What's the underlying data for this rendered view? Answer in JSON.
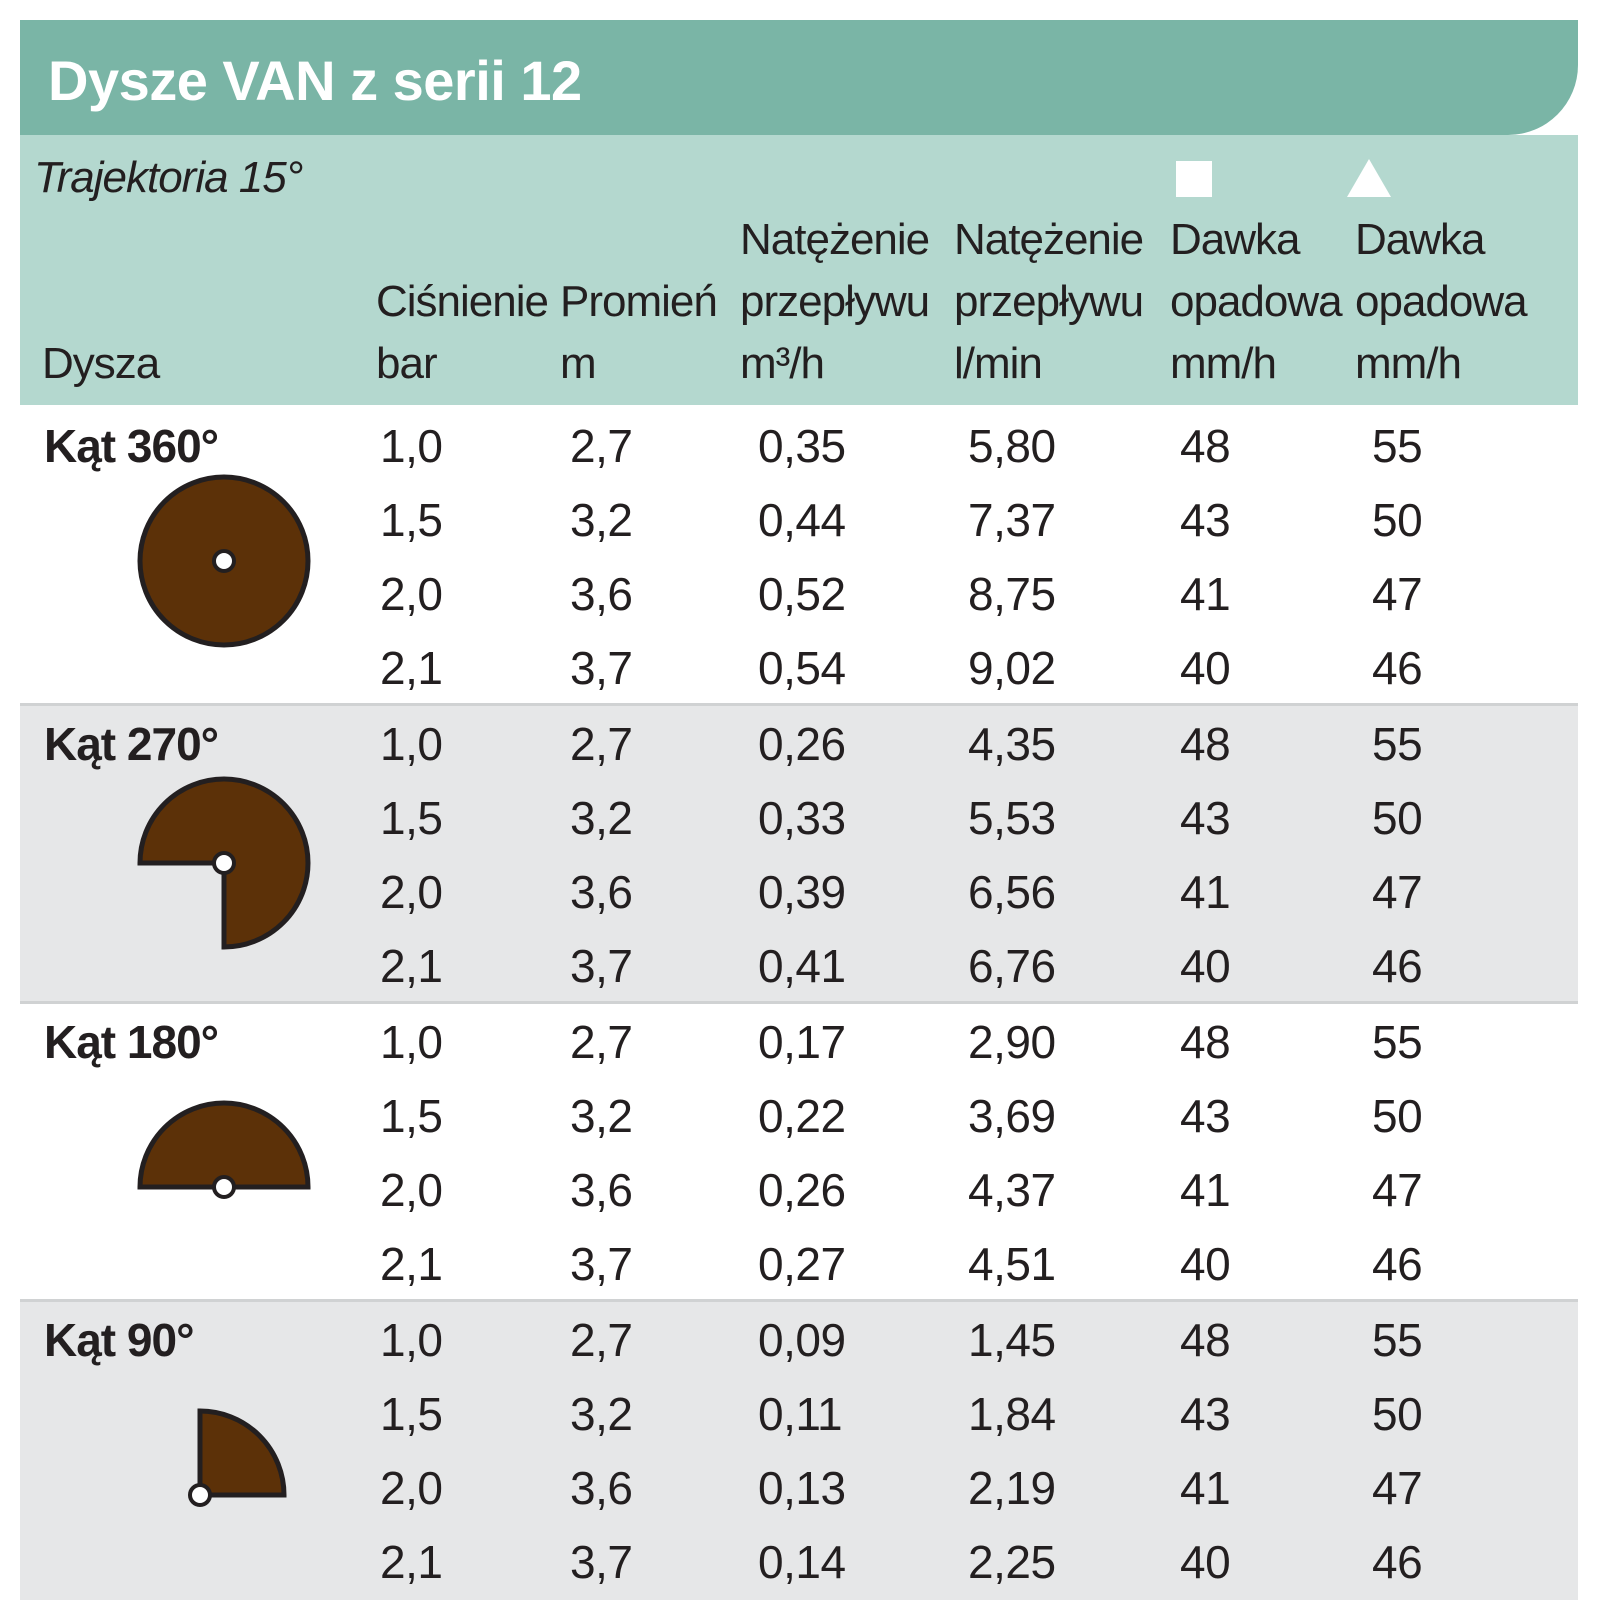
{
  "title": "Dysze VAN z serii 12",
  "trajectory": "Trajektoria 15°",
  "columns": [
    {
      "key": "dysza",
      "lines": [
        "Dysza"
      ]
    },
    {
      "key": "cisnienie",
      "lines": [
        "Ciśnienie",
        "bar"
      ]
    },
    {
      "key": "promien",
      "lines": [
        "Promień",
        "m"
      ]
    },
    {
      "key": "natezenie_m3h",
      "lines": [
        "Natężenie",
        "przepływu",
        "m³/h"
      ]
    },
    {
      "key": "natezenie_lmin",
      "lines": [
        "Natężenie",
        "przepływu",
        "l/min"
      ]
    },
    {
      "key": "dawka_square",
      "marker": "square",
      "lines": [
        "Dawka",
        "opadowa",
        "mm/h"
      ]
    },
    {
      "key": "dawka_triangle",
      "marker": "triangle",
      "lines": [
        "Dawka",
        "opadowa",
        "mm/h"
      ]
    }
  ],
  "icon_color": "#5c3108",
  "groups": [
    {
      "label": "Kąt 360°",
      "icon": "full-circle-icon",
      "rows": [
        [
          "1,0",
          "2,7",
          "0,35",
          "5,80",
          "48",
          "55"
        ],
        [
          "1,5",
          "3,2",
          "0,44",
          "7,37",
          "43",
          "50"
        ],
        [
          "2,0",
          "3,6",
          "0,52",
          "8,75",
          "41",
          "47"
        ],
        [
          "2,1",
          "3,7",
          "0,54",
          "9,02",
          "40",
          "46"
        ]
      ]
    },
    {
      "label": "Kąt 270°",
      "icon": "three-quarter-circle-icon",
      "rows": [
        [
          "1,0",
          "2,7",
          "0,26",
          "4,35",
          "48",
          "55"
        ],
        [
          "1,5",
          "3,2",
          "0,33",
          "5,53",
          "43",
          "50"
        ],
        [
          "2,0",
          "3,6",
          "0,39",
          "6,56",
          "41",
          "47"
        ],
        [
          "2,1",
          "3,7",
          "0,41",
          "6,76",
          "40",
          "46"
        ]
      ]
    },
    {
      "label": "Kąt 180°",
      "icon": "half-circle-icon",
      "rows": [
        [
          "1,0",
          "2,7",
          "0,17",
          "2,90",
          "48",
          "55"
        ],
        [
          "1,5",
          "3,2",
          "0,22",
          "3,69",
          "43",
          "50"
        ],
        [
          "2,0",
          "3,6",
          "0,26",
          "4,37",
          "41",
          "47"
        ],
        [
          "2,1",
          "3,7",
          "0,27",
          "4,51",
          "40",
          "46"
        ]
      ]
    },
    {
      "label": "Kąt 90°",
      "icon": "quarter-circle-icon",
      "rows": [
        [
          "1,0",
          "2,7",
          "0,09",
          "1,45",
          "48",
          "55"
        ],
        [
          "1,5",
          "3,2",
          "0,11",
          "1,84",
          "43",
          "50"
        ],
        [
          "2,0",
          "3,6",
          "0,13",
          "2,19",
          "41",
          "47"
        ],
        [
          "2,1",
          "3,7",
          "0,14",
          "2,25",
          "40",
          "46"
        ]
      ]
    }
  ]
}
